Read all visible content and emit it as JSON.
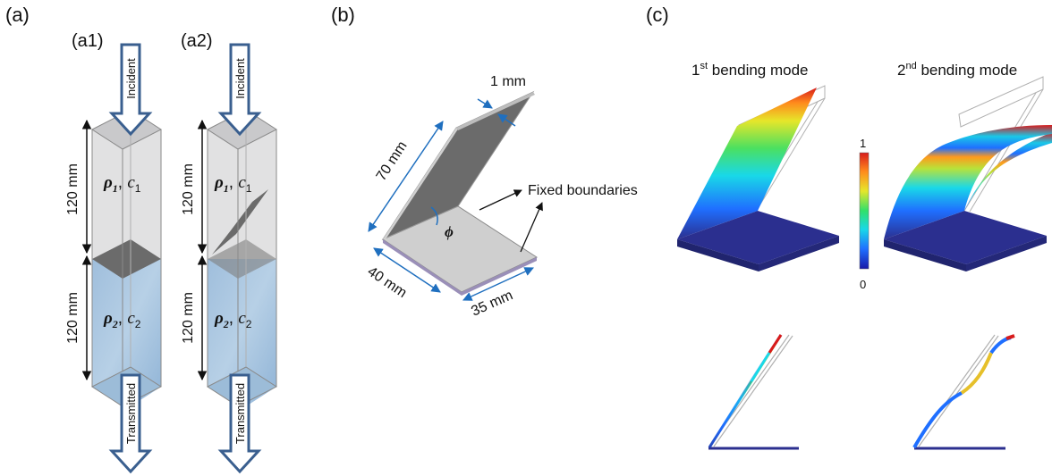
{
  "panels": {
    "a": {
      "label": "(a)"
    },
    "a1": {
      "label": "(a1)"
    },
    "a2": {
      "label": "(a2)"
    },
    "b": {
      "label": "(b)"
    },
    "c": {
      "label": "(c)"
    }
  },
  "column": {
    "incident": "Incident",
    "transmitted": "Transmitted",
    "upper_height": "120 mm",
    "lower_height": "120 mm",
    "upper_rho": "ρ",
    "upper_rho_sub": "1",
    "upper_c": "c",
    "upper_c_sub": "1",
    "lower_rho": "ρ",
    "lower_rho_sub": "2",
    "lower_c": "c",
    "lower_c_sub": "2",
    "sep": ", "
  },
  "plate": {
    "thickness": "1 mm",
    "length": "70 mm",
    "width": "40 mm",
    "depth": "35 mm",
    "angle": "ϕ",
    "fixed": "Fixed boundaries"
  },
  "modes": {
    "first_num": "1",
    "first_sup": "st",
    "first_text": " bending mode",
    "second_num": "2",
    "second_sup": "nd",
    "second_text": " bending mode"
  },
  "colorbar": {
    "max": "1",
    "min": "0",
    "colors": [
      "#1a1aa8",
      "#1f6fff",
      "#19d8e8",
      "#31e06a",
      "#e6e62a",
      "#ff8a1c",
      "#d81b1b"
    ]
  },
  "colors": {
    "arrow": "#3a5f8f",
    "dim": "#1f6fbf",
    "upper_fluid": "#d9d9db",
    "lower_fluid": "#a9c6e0",
    "plate": "#6b6b6b",
    "base": "#2b2f8f"
  }
}
